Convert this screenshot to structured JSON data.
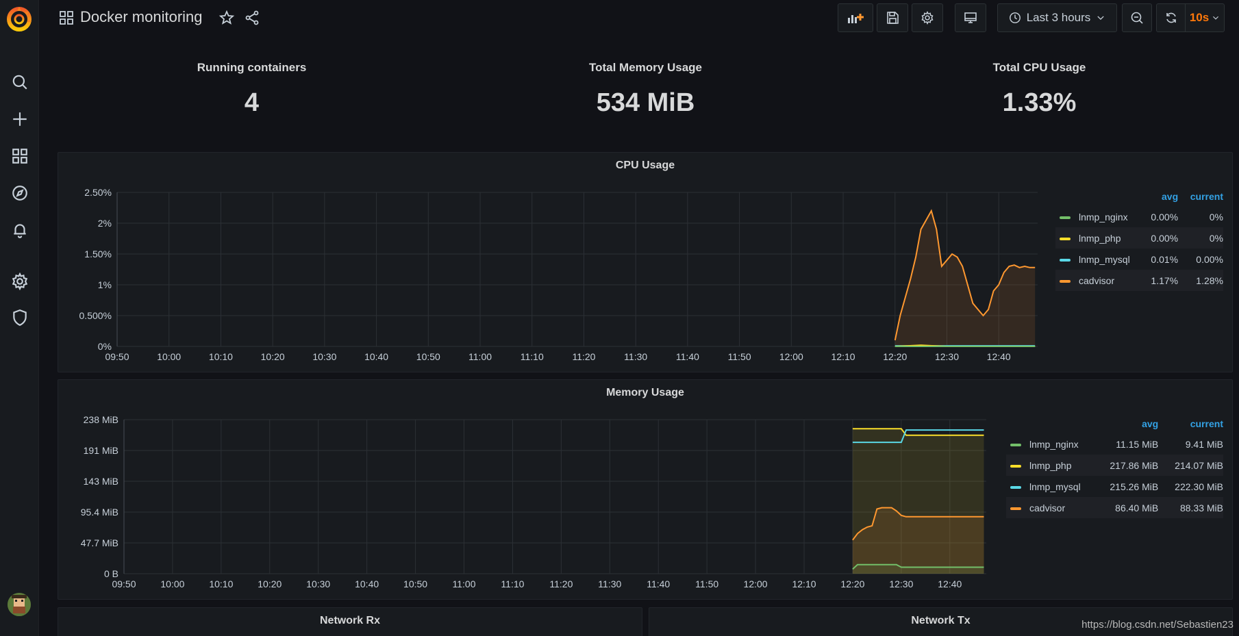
{
  "header": {
    "title": "Docker monitoring",
    "time_range": "Last 3 hours",
    "refresh_interval": "10s"
  },
  "stats": [
    {
      "title": "Running containers",
      "value": "4"
    },
    {
      "title": "Total Memory Usage",
      "value": "534 MiB"
    },
    {
      "title": "Total CPU Usage",
      "value": "1.33%"
    }
  ],
  "cpu_panel": {
    "title": "CPU Usage",
    "legend_headers": {
      "avg": "avg",
      "current": "current"
    },
    "legend": [
      {
        "name": "lnmp_nginx",
        "avg": "0.00%",
        "current": "0%",
        "color": "#73bf69"
      },
      {
        "name": "lnmp_php",
        "avg": "0.00%",
        "current": "0%",
        "color": "#fade2a"
      },
      {
        "name": "lnmp_mysql",
        "avg": "0.01%",
        "current": "0.00%",
        "color": "#5ad8e6"
      },
      {
        "name": "cadvisor",
        "avg": "1.17%",
        "current": "1.28%",
        "color": "#ff9830"
      }
    ]
  },
  "memory_panel": {
    "title": "Memory Usage",
    "legend_headers": {
      "avg": "avg",
      "current": "current"
    },
    "legend": [
      {
        "name": "lnmp_nginx",
        "avg": "11.15 MiB",
        "current": "9.41 MiB",
        "color": "#73bf69"
      },
      {
        "name": "lnmp_php",
        "avg": "217.86 MiB",
        "current": "214.07 MiB",
        "color": "#fade2a"
      },
      {
        "name": "lnmp_mysql",
        "avg": "215.26 MiB",
        "current": "222.30 MiB",
        "color": "#5ad8e6"
      },
      {
        "name": "cadvisor",
        "avg": "86.40 MiB",
        "current": "88.33 MiB",
        "color": "#ff9830"
      }
    ]
  },
  "network_rx": {
    "title": "Network Rx"
  },
  "network_tx": {
    "title": "Network Tx"
  },
  "watermark": "https://blog.csdn.net/Sebastien23",
  "chart_data": [
    {
      "type": "line",
      "title": "CPU Usage",
      "x_ticks": [
        "09:50",
        "10:00",
        "10:10",
        "10:20",
        "10:30",
        "10:40",
        "10:50",
        "11:00",
        "11:10",
        "11:20",
        "11:30",
        "11:40",
        "11:50",
        "12:00",
        "12:10",
        "12:20",
        "12:30",
        "12:40"
      ],
      "y_ticks": [
        "0%",
        "0.500%",
        "1%",
        "1.50%",
        "2%",
        "2.50%"
      ],
      "ylim": [
        0,
        2.5
      ],
      "xlim_minutes": [
        590,
        767.5
      ],
      "series": [
        {
          "name": "cadvisor",
          "color": "#ff9830",
          "fill": true,
          "x": [
            "12:20",
            "12:21",
            "12:22",
            "12:23",
            "12:24",
            "12:25",
            "12:26",
            "12:27",
            "12:28",
            "12:29",
            "12:30",
            "12:31",
            "12:32",
            "12:33",
            "12:34",
            "12:35",
            "12:36",
            "12:37",
            "12:38",
            "12:39",
            "12:40",
            "12:41",
            "12:42",
            "12:43",
            "12:44",
            "12:45",
            "12:46",
            "12:47"
          ],
          "values": [
            0.1,
            0.5,
            0.8,
            1.1,
            1.45,
            1.9,
            2.05,
            2.2,
            1.9,
            1.3,
            1.4,
            1.5,
            1.45,
            1.3,
            1.0,
            0.7,
            0.6,
            0.5,
            0.6,
            0.9,
            1.0,
            1.2,
            1.3,
            1.32,
            1.28,
            1.3,
            1.28,
            1.28
          ]
        },
        {
          "name": "lnmp_mysql",
          "color": "#5ad8e6",
          "fill": false,
          "x": [
            "12:20",
            "12:30",
            "12:40",
            "12:47"
          ],
          "values": [
            0.01,
            0.01,
            0.01,
            0.01
          ]
        },
        {
          "name": "lnmp_php",
          "color": "#fade2a",
          "fill": false,
          "x": [
            "12:20",
            "12:25",
            "12:30",
            "12:40",
            "12:47"
          ],
          "values": [
            0.0,
            0.02,
            0.0,
            0.0,
            0.0
          ]
        },
        {
          "name": "lnmp_nginx",
          "color": "#73bf69",
          "fill": false,
          "x": [
            "12:20",
            "12:47"
          ],
          "values": [
            0.0,
            0.0
          ]
        }
      ]
    },
    {
      "type": "line",
      "title": "Memory Usage",
      "x_ticks": [
        "09:50",
        "10:00",
        "10:10",
        "10:20",
        "10:30",
        "10:40",
        "10:50",
        "11:00",
        "11:10",
        "11:20",
        "11:30",
        "11:40",
        "11:50",
        "12:00",
        "12:10",
        "12:20",
        "12:30",
        "12:40"
      ],
      "y_ticks": [
        "0 B",
        "47.7 MiB",
        "95.4 MiB",
        "143 MiB",
        "191 MiB",
        "238 MiB"
      ],
      "ylim": [
        0,
        238
      ],
      "xlim_minutes": [
        590,
        767.5
      ],
      "series": [
        {
          "name": "lnmp_php",
          "color": "#fade2a",
          "fill": true,
          "x": [
            "12:20",
            "12:30",
            "12:31",
            "12:47"
          ],
          "values": [
            224,
            224,
            214,
            214
          ]
        },
        {
          "name": "lnmp_mysql",
          "color": "#5ad8e6",
          "fill": false,
          "x": [
            "12:20",
            "12:30",
            "12:31",
            "12:47"
          ],
          "values": [
            203,
            203,
            222,
            222
          ]
        },
        {
          "name": "cadvisor",
          "color": "#ff9830",
          "fill": true,
          "x": [
            "12:20",
            "12:21",
            "12:22",
            "12:23",
            "12:24",
            "12:25",
            "12:26",
            "12:27",
            "12:28",
            "12:29",
            "12:30",
            "12:31",
            "12:35",
            "12:47"
          ],
          "values": [
            52,
            62,
            68,
            72,
            74,
            100,
            102,
            102,
            102,
            97,
            90,
            88,
            88,
            88
          ]
        },
        {
          "name": "lnmp_nginx",
          "color": "#73bf69",
          "fill": true,
          "x": [
            "12:20",
            "12:21",
            "12:29",
            "12:30",
            "12:47"
          ],
          "values": [
            7,
            14,
            14,
            10,
            10
          ]
        }
      ]
    }
  ]
}
